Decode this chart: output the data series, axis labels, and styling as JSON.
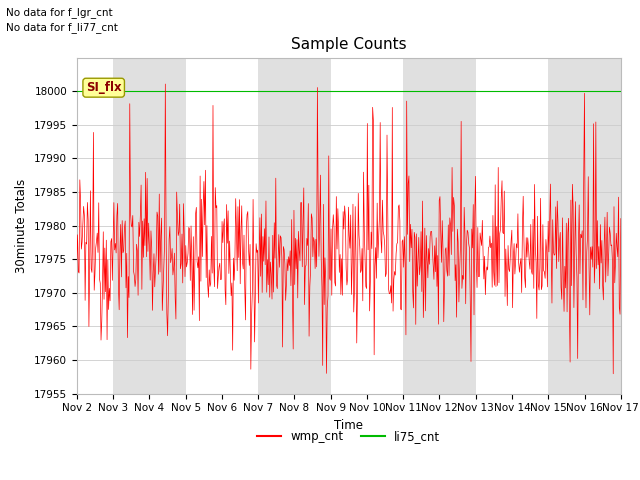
{
  "title": "Sample Counts",
  "xlabel": "Time",
  "ylabel": "30minute Totals",
  "ylim": [
    17955,
    18005
  ],
  "x_start": 1,
  "x_end": 16,
  "x_tick_positions": [
    1,
    2,
    3,
    4,
    5,
    6,
    7,
    8,
    9,
    10,
    11,
    12,
    13,
    14,
    15,
    16
  ],
  "x_tick_labels": [
    "Nov 2",
    "Nov 3",
    "Nov 4",
    "Nov 5",
    "Nov 6",
    "Nov 7",
    "Nov 8",
    "Nov 9",
    "Nov 10",
    "Nov 11",
    "Nov 12",
    "Nov 13",
    "Nov 14",
    "Nov 15",
    "Nov 16",
    "Nov 17"
  ],
  "yticks": [
    17955,
    17960,
    17965,
    17970,
    17975,
    17980,
    17985,
    17990,
    17995,
    18000
  ],
  "wmp_color": "#ff0000",
  "li75_color": "#00bb00",
  "bg_color": "#ffffff",
  "band_color": "#e0e0e0",
  "grid_color": "#cccccc",
  "annotation_text1": "No data for f_lgr_cnt",
  "annotation_text2": "No data for f_li77_cnt",
  "si_flx_label": "SI_flx",
  "legend_labels": [
    "wmp_cnt",
    "li75_cnt"
  ],
  "li75_value": 18000,
  "seed": 12345,
  "n_points": 720,
  "wmp_mean": 17976,
  "wmp_std": 5.5,
  "title_fontsize": 11,
  "tick_fontsize": 7.5,
  "label_fontsize": 8.5
}
